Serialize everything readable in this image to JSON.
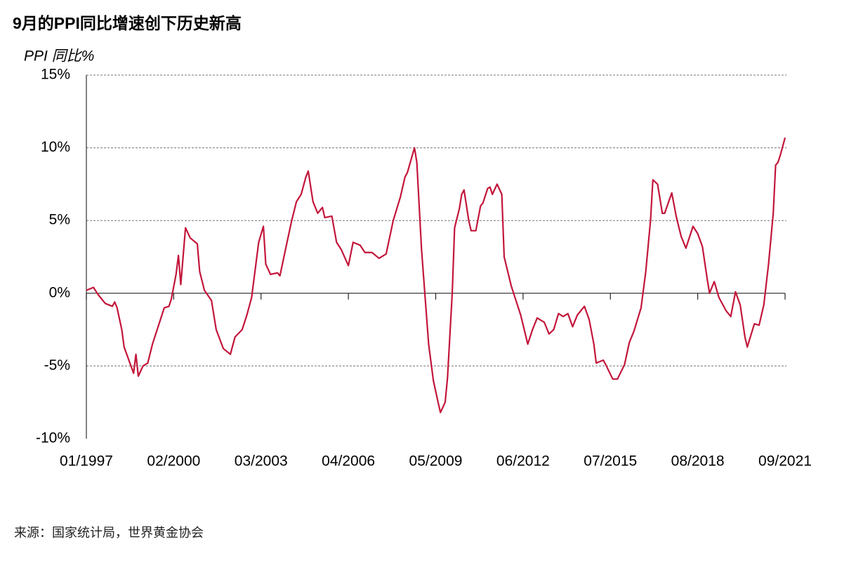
{
  "chart_data": {
    "type": "line",
    "title": "9月的PPI同比增速创下历史新高",
    "y_label": "PPI 同比%",
    "source": "来源：国家统计局，世界黄金协会",
    "x": [
      "01/1997",
      "04/1997",
      "06/1997",
      "09/1997",
      "12/1997",
      "01/1998",
      "02/1998",
      "04/1998",
      "05/1998",
      "07/1998",
      "09/1998",
      "10/1998",
      "11/1998",
      "01/1999",
      "03/1999",
      "05/1999",
      "07/1999",
      "10/1999",
      "12/1999",
      "01/2000",
      "03/2000",
      "04/2000",
      "05/2000",
      "07/2000",
      "09/2000",
      "12/2000",
      "01/2001",
      "03/2001",
      "06/2001",
      "08/2001",
      "11/2001",
      "02/2002",
      "04/2002",
      "07/2002",
      "09/2002",
      "11/2002",
      "02/2003",
      "04/2003",
      "05/2003",
      "07/2003",
      "10/2003",
      "11/2003",
      "02/2004",
      "04/2004",
      "06/2004",
      "08/2004",
      "10/2004",
      "11/2004",
      "01/2005",
      "03/2005",
      "05/2005",
      "06/2005",
      "09/2005",
      "11/2005",
      "01/2006",
      "04/2006",
      "06/2006",
      "09/2006",
      "11/2006",
      "02/2007",
      "05/2007",
      "08/2007",
      "11/2007",
      "02/2008",
      "04/2008",
      "05/2008",
      "08/2008",
      "09/2008",
      "11/2008",
      "02/2009",
      "04/2009",
      "06/2009",
      "07/2009",
      "09/2009",
      "10/2009",
      "12/2009",
      "01/2010",
      "03/2010",
      "04/2010",
      "05/2010",
      "07/2010",
      "08/2010",
      "10/2010",
      "12/2010",
      "01/2011",
      "03/2011",
      "04/2011",
      "05/2011",
      "07/2011",
      "09/2011",
      "10/2011",
      "01/2012",
      "03/2012",
      "05/2012",
      "08/2012",
      "10/2012",
      "12/2012",
      "03/2013",
      "05/2013",
      "07/2013",
      "09/2013",
      "11/2013",
      "01/2014",
      "03/2014",
      "05/2014",
      "08/2014",
      "10/2014",
      "12/2014",
      "01/2015",
      "04/2015",
      "05/2015",
      "08/2015",
      "10/2015",
      "01/2016",
      "03/2016",
      "05/2016",
      "08/2016",
      "10/2016",
      "12/2016",
      "01/2017",
      "03/2017",
      "05/2017",
      "06/2017",
      "09/2017",
      "11/2017",
      "01/2018",
      "03/2018",
      "06/2018",
      "08/2018",
      "10/2018",
      "12/2018",
      "01/2019",
      "03/2019",
      "05/2019",
      "08/2019",
      "10/2019",
      "12/2019",
      "02/2020",
      "04/2020",
      "05/2020",
      "08/2020",
      "10/2020",
      "12/2020",
      "02/2021",
      "04/2021",
      "05/2021",
      "06/2021",
      "07/2021",
      "09/2021"
    ],
    "series": [
      {
        "name": "PPI",
        "color": "#c3163a",
        "values": [
          0.2,
          0.4,
          -0.1,
          -0.7,
          -0.9,
          -0.6,
          -1.0,
          -2.5,
          -3.7,
          -4.6,
          -5.5,
          -4.2,
          -5.7,
          -5.0,
          -4.8,
          -3.5,
          -2.5,
          -1.0,
          -0.9,
          -0.4,
          1.3,
          2.6,
          0.6,
          4.5,
          3.8,
          3.4,
          1.5,
          0.2,
          -0.5,
          -2.5,
          -3.8,
          -4.2,
          -3.0,
          -2.5,
          -1.5,
          -0.3,
          3.5,
          4.6,
          2.0,
          1.3,
          1.4,
          1.2,
          3.5,
          5.0,
          6.3,
          6.8,
          8.0,
          8.4,
          6.3,
          5.5,
          5.9,
          5.2,
          5.3,
          3.5,
          3.0,
          1.9,
          3.5,
          3.3,
          2.8,
          2.8,
          2.4,
          2.7,
          5.0,
          6.6,
          8.0,
          8.3,
          10.0,
          9.0,
          3.0,
          -3.5,
          -6.0,
          -7.5,
          -8.2,
          -7.5,
          -5.8,
          0.0,
          4.5,
          5.8,
          6.8,
          7.1,
          5.0,
          4.3,
          4.3,
          6.0,
          6.2,
          7.2,
          7.3,
          6.8,
          7.5,
          6.8,
          2.5,
          0.5,
          -0.5,
          -1.5,
          -3.5,
          -2.5,
          -1.7,
          -2.0,
          -2.8,
          -2.5,
          -1.4,
          -1.6,
          -1.4,
          -2.3,
          -1.5,
          -0.9,
          -1.8,
          -3.5,
          -4.8,
          -4.6,
          -4.9,
          -5.9,
          -5.9,
          -4.9,
          -3.4,
          -2.6,
          -1.0,
          1.5,
          5.0,
          7.8,
          7.5,
          5.5,
          5.5,
          6.9,
          5.2,
          3.9,
          3.1,
          4.6,
          4.1,
          3.2,
          1.0,
          0.0,
          0.8,
          -0.3,
          -1.2,
          -1.6,
          0.1,
          -0.8,
          -3.0,
          -3.7,
          -2.1,
          -2.2,
          -0.8,
          2.0,
          5.5,
          8.8,
          9.0,
          9.5,
          10.7
        ]
      }
    ],
    "xlim": [
      "01/1997",
      "09/2021"
    ],
    "xticks": [
      "01/1997",
      "02/2000",
      "03/2003",
      "04/2006",
      "05/2009",
      "06/2012",
      "07/2015",
      "08/2018",
      "09/2021"
    ],
    "ylim": [
      -10,
      15
    ],
    "yticks": [
      {
        "value": -10,
        "label": "-10%"
      },
      {
        "value": -5,
        "label": "-5%"
      },
      {
        "value": 0,
        "label": "0%"
      },
      {
        "value": 5,
        "label": "5%"
      },
      {
        "value": 10,
        "label": "10%"
      },
      {
        "value": 15,
        "label": "15%"
      }
    ],
    "grid": true
  }
}
